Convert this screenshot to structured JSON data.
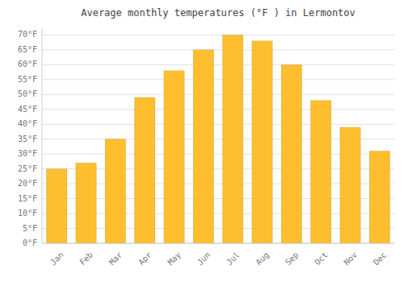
{
  "chart_data": {
    "type": "bar",
    "title": "Average monthly temperatures (°F ) in Lermontov",
    "categories": [
      "Jan",
      "Feb",
      "Mar",
      "Apr",
      "May",
      "Jun",
      "Jul",
      "Aug",
      "Sep",
      "Oct",
      "Nov",
      "Dec"
    ],
    "values": [
      25,
      27,
      35,
      49,
      58,
      65,
      70,
      68,
      60,
      48,
      39,
      31
    ],
    "color": "#FFBE2D",
    "ylim": [
      0,
      72
    ],
    "yticks": [
      {
        "value": 0,
        "label": "0°F"
      },
      {
        "value": 5,
        "label": "5°F"
      },
      {
        "value": 10,
        "label": "10°F"
      },
      {
        "value": 15,
        "label": "15°F"
      },
      {
        "value": 20,
        "label": "20°F"
      },
      {
        "value": 25,
        "label": "25°F"
      },
      {
        "value": 30,
        "label": "30°F"
      },
      {
        "value": 35,
        "label": "35°F"
      },
      {
        "value": 40,
        "label": "40°F"
      },
      {
        "value": 45,
        "label": "45°F"
      },
      {
        "value": 50,
        "label": "50°F"
      },
      {
        "value": 55,
        "label": "55°F"
      },
      {
        "value": 60,
        "label": "60°F"
      },
      {
        "value": 65,
        "label": "65°F"
      },
      {
        "value": 70,
        "label": "70°F"
      }
    ],
    "grid": true
  }
}
